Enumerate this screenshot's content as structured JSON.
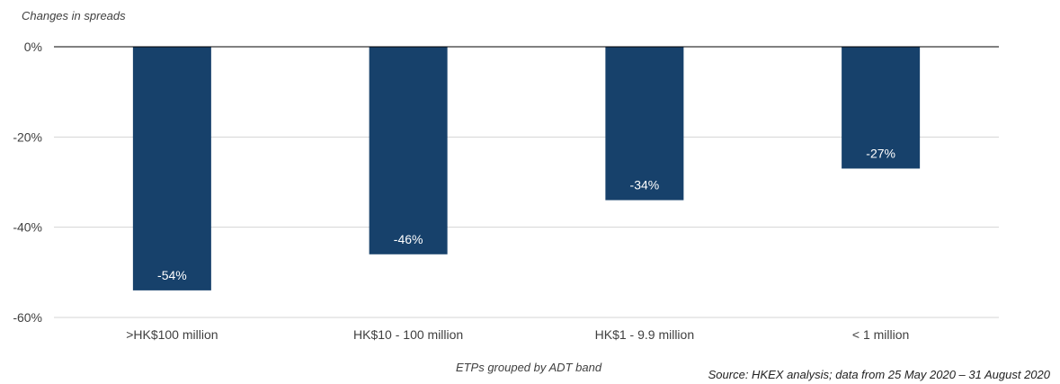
{
  "chart_data": {
    "type": "bar",
    "ylabel": "Changes in spreads",
    "xlabel": "ETPs grouped by ADT band",
    "source": "Source: HKEX analysis; data from 25 May 2020 – 31 August 2020",
    "categories": [
      ">HK$100 million",
      "HK$10 - 100 million",
      "HK$1 - 9.9 million",
      "< 1 million"
    ],
    "values": [
      -54,
      -46,
      -34,
      -27
    ],
    "data_labels": [
      "-54%",
      "-46%",
      "-34%",
      "-27%"
    ],
    "ylim": [
      -60,
      0
    ],
    "yticks": [
      0,
      -20,
      -40,
      -60
    ],
    "ytick_labels": [
      "0%",
      "-20%",
      "-40%",
      "-60%"
    ],
    "grid": true,
    "legend": "none",
    "bar_color": "#17416b",
    "grid_color": "#d4d4d4",
    "zero_line_color": "#000000"
  }
}
